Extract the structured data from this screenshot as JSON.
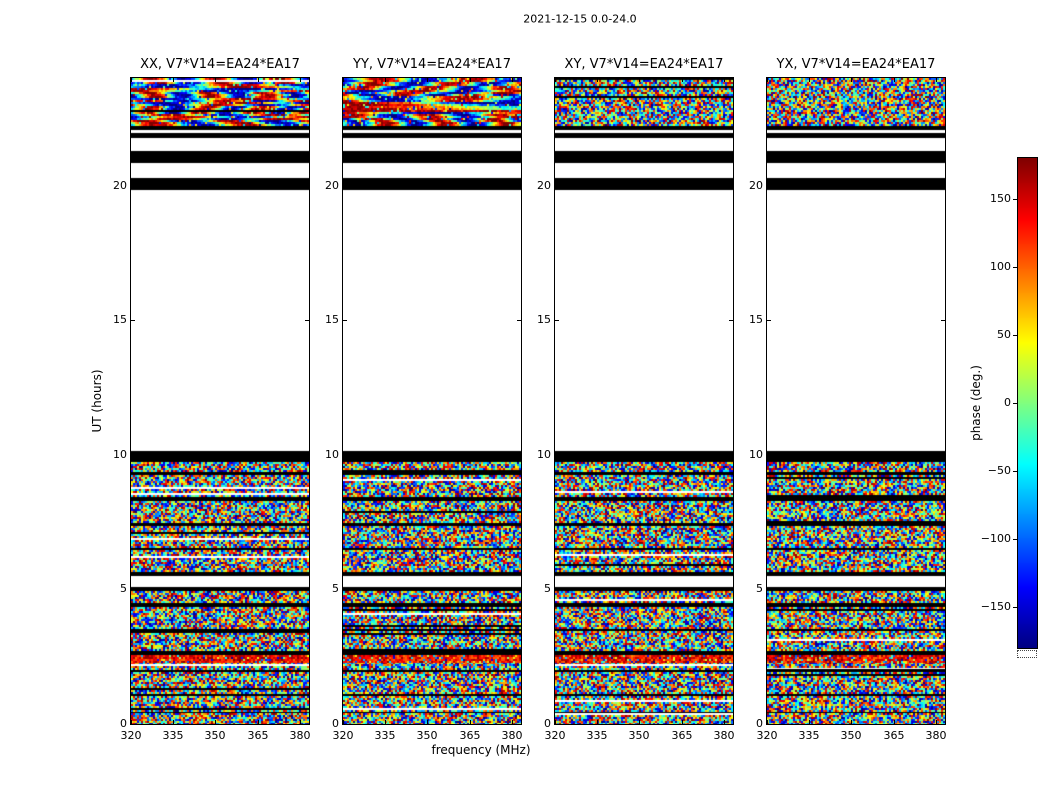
{
  "chart_data": {
    "type": "heatmap",
    "title": "2021-12-15 0.0-24.0",
    "xlabel": "frequency (MHz)",
    "ylabel": "UT (hours)",
    "x_ticks": [
      320,
      335,
      350,
      365,
      380
    ],
    "x_range": [
      320,
      383.3
    ],
    "y_ticks": [
      0,
      5,
      10,
      15,
      20
    ],
    "y_range": [
      0,
      24
    ],
    "grid": false,
    "panels": [
      {
        "id": "XX",
        "title": "XX, V7*V14=EA24*EA17",
        "streaky": true
      },
      {
        "id": "YY",
        "title": "YY, V7*V14=EA24*EA17",
        "streaky": true
      },
      {
        "id": "XY",
        "title": "XY, V7*V14=EA24*EA17",
        "streaky": false
      },
      {
        "id": "YX",
        "title": "YX, V7*V14=EA24*EA17",
        "streaky": false
      }
    ],
    "colorbar": {
      "label": "phase (deg.)",
      "ticks": [
        150,
        100,
        50,
        0,
        -50,
        -100,
        -150
      ],
      "range": [
        -180,
        180
      ],
      "colormap": "jet",
      "position": "right"
    },
    "time_bands": [
      [
        0.0,
        0.4,
        "noise"
      ],
      [
        0.4,
        0.5,
        "black"
      ],
      [
        0.5,
        1.05,
        "noise"
      ],
      [
        1.05,
        1.15,
        "black"
      ],
      [
        1.15,
        1.95,
        "noise"
      ],
      [
        1.95,
        2.05,
        "black"
      ],
      [
        2.05,
        2.3,
        "noise"
      ],
      [
        2.3,
        2.55,
        "bright"
      ],
      [
        2.55,
        2.75,
        "black"
      ],
      [
        2.75,
        3.45,
        "noise"
      ],
      [
        3.45,
        3.55,
        "black"
      ],
      [
        3.55,
        4.35,
        "noise"
      ],
      [
        4.35,
        4.5,
        "black"
      ],
      [
        4.5,
        4.95,
        "noise"
      ],
      [
        4.95,
        5.1,
        "black"
      ],
      [
        5.1,
        5.5,
        "white"
      ],
      [
        5.5,
        5.65,
        "black"
      ],
      [
        5.65,
        6.45,
        "noise"
      ],
      [
        6.45,
        6.55,
        "black"
      ],
      [
        6.55,
        7.35,
        "noise"
      ],
      [
        7.35,
        7.5,
        "black"
      ],
      [
        7.5,
        8.3,
        "noise"
      ],
      [
        8.3,
        8.42,
        "black"
      ],
      [
        8.42,
        9.25,
        "noise"
      ],
      [
        9.25,
        9.35,
        "black"
      ],
      [
        9.35,
        9.72,
        "noise"
      ],
      [
        9.72,
        10.15,
        "black"
      ],
      [
        10.15,
        19.85,
        "white"
      ],
      [
        19.85,
        20.3,
        "black"
      ],
      [
        20.3,
        20.85,
        "white"
      ],
      [
        20.85,
        21.3,
        "black"
      ],
      [
        21.3,
        21.78,
        "white"
      ],
      [
        21.78,
        21.95,
        "black"
      ],
      [
        21.95,
        22.08,
        "white"
      ],
      [
        22.08,
        22.22,
        "black"
      ],
      [
        22.22,
        24.0,
        "streaks"
      ]
    ]
  }
}
